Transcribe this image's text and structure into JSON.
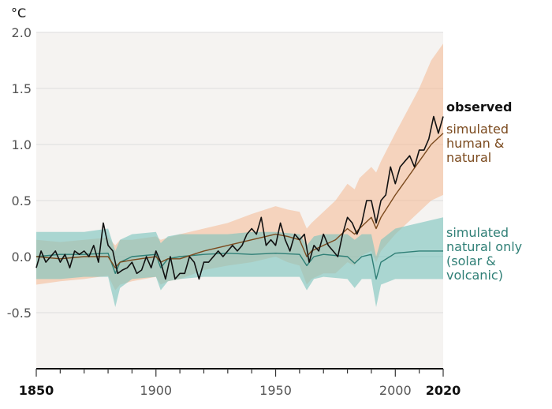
{
  "chart_data": {
    "type": "line",
    "ylabel": "°C",
    "xlim": [
      1850,
      2020
    ],
    "ylim": [
      -1.0,
      2.0
    ],
    "y_ticks": [
      2.0,
      1.5,
      1.0,
      0.5,
      0.0,
      -0.5
    ],
    "y_tick_labels": [
      "2.0",
      "1.5",
      "1.0",
      "0.5",
      "0.0",
      "-0.5"
    ],
    "x_ticks": [
      1850,
      1900,
      1950,
      2000,
      2020
    ],
    "x_tick_labels": [
      "1850",
      "1900",
      "1950",
      "2000",
      "2020"
    ],
    "x_tick_bold": [
      true,
      false,
      false,
      false,
      true
    ],
    "grid": true,
    "colors": {
      "plot_bg": "#f5f3f1",
      "grid": "#dddddd",
      "observed": "#111111",
      "human_natural": "#7b4a1e",
      "human_natural_band": "#f4b892",
      "natural": "#2f7f76",
      "natural_band": "#78c3bd"
    },
    "legend": {
      "observed": [
        "observed"
      ],
      "human_natural": [
        "simulated",
        "human &",
        "natural"
      ],
      "natural": [
        "simulated",
        "natural only",
        "(solar &",
        "volcanic)"
      ]
    },
    "series": [
      {
        "key": "observed",
        "x": [
          1850,
          1852,
          1854,
          1856,
          1858,
          1860,
          1862,
          1864,
          1866,
          1868,
          1870,
          1872,
          1874,
          1876,
          1878,
          1880,
          1882,
          1884,
          1886,
          1888,
          1890,
          1892,
          1894,
          1896,
          1898,
          1900,
          1902,
          1904,
          1906,
          1908,
          1910,
          1912,
          1914,
          1916,
          1918,
          1920,
          1922,
          1924,
          1926,
          1928,
          1930,
          1932,
          1934,
          1936,
          1938,
          1940,
          1942,
          1944,
          1946,
          1948,
          1950,
          1952,
          1954,
          1956,
          1958,
          1960,
          1962,
          1964,
          1966,
          1968,
          1970,
          1972,
          1974,
          1976,
          1978,
          1980,
          1982,
          1984,
          1986,
          1988,
          1990,
          1992,
          1994,
          1996,
          1998,
          2000,
          2002,
          2004,
          2006,
          2008,
          2010,
          2012,
          2014,
          2016,
          2018,
          2020
        ],
        "values": [
          -0.1,
          0.05,
          -0.05,
          0.0,
          0.05,
          -0.05,
          0.02,
          -0.1,
          0.05,
          0.02,
          0.05,
          0.0,
          0.1,
          -0.05,
          0.3,
          0.1,
          0.05,
          -0.15,
          -0.12,
          -0.1,
          -0.05,
          -0.15,
          -0.12,
          0.0,
          -0.1,
          0.05,
          -0.05,
          -0.2,
          0.0,
          -0.2,
          -0.15,
          -0.15,
          0.0,
          -0.05,
          -0.2,
          -0.05,
          -0.05,
          0.0,
          0.05,
          0.0,
          0.05,
          0.1,
          0.05,
          0.1,
          0.2,
          0.25,
          0.2,
          0.35,
          0.1,
          0.15,
          0.1,
          0.3,
          0.15,
          0.05,
          0.2,
          0.15,
          0.2,
          -0.05,
          0.1,
          0.05,
          0.2,
          0.1,
          0.05,
          0.0,
          0.2,
          0.35,
          0.3,
          0.2,
          0.3,
          0.5,
          0.5,
          0.3,
          0.5,
          0.55,
          0.8,
          0.65,
          0.8,
          0.85,
          0.9,
          0.8,
          0.95,
          0.95,
          1.05,
          1.25,
          1.1,
          1.25
        ]
      },
      {
        "key": "human_natural",
        "x": [
          1850,
          1860,
          1870,
          1880,
          1883,
          1885,
          1890,
          1900,
          1902,
          1905,
          1910,
          1920,
          1930,
          1940,
          1950,
          1955,
          1960,
          1963,
          1965,
          1970,
          1975,
          1980,
          1983,
          1985,
          1990,
          1992,
          1994,
          2000,
          2005,
          2010,
          2015,
          2020
        ],
        "values": [
          0.0,
          -0.02,
          0.0,
          0.0,
          -0.1,
          -0.05,
          -0.03,
          0.0,
          -0.05,
          -0.02,
          -0.02,
          0.05,
          0.1,
          0.15,
          0.2,
          0.18,
          0.15,
          0.0,
          0.05,
          0.1,
          0.15,
          0.25,
          0.2,
          0.25,
          0.35,
          0.25,
          0.35,
          0.55,
          0.7,
          0.85,
          1.0,
          1.1
        ],
        "upper": [
          0.15,
          0.13,
          0.15,
          0.17,
          0.1,
          0.15,
          0.15,
          0.18,
          0.15,
          0.17,
          0.2,
          0.25,
          0.3,
          0.38,
          0.45,
          0.42,
          0.4,
          0.25,
          0.3,
          0.4,
          0.5,
          0.65,
          0.6,
          0.7,
          0.8,
          0.75,
          0.85,
          1.1,
          1.3,
          1.5,
          1.75,
          1.9
        ],
        "lower": [
          -0.25,
          -0.22,
          -0.2,
          -0.17,
          -0.3,
          -0.25,
          -0.22,
          -0.18,
          -0.25,
          -0.22,
          -0.2,
          -0.12,
          -0.08,
          -0.05,
          0.0,
          -0.05,
          -0.08,
          -0.25,
          -0.2,
          -0.15,
          -0.15,
          -0.05,
          -0.08,
          0.0,
          0.05,
          -0.05,
          0.05,
          0.2,
          0.3,
          0.4,
          0.5,
          0.55
        ]
      },
      {
        "key": "natural",
        "x": [
          1850,
          1860,
          1870,
          1880,
          1883,
          1885,
          1890,
          1900,
          1902,
          1905,
          1910,
          1920,
          1930,
          1940,
          1950,
          1960,
          1963,
          1966,
          1970,
          1980,
          1983,
          1986,
          1990,
          1992,
          1994,
          2000,
          2010,
          2020
        ],
        "values": [
          0.0,
          0.02,
          0.02,
          0.03,
          -0.15,
          -0.05,
          0.0,
          0.02,
          -0.1,
          -0.02,
          0.0,
          0.02,
          0.03,
          0.02,
          0.03,
          0.02,
          -0.08,
          0.0,
          0.02,
          0.0,
          -0.06,
          0.0,
          0.02,
          -0.2,
          -0.05,
          0.03,
          0.05,
          0.05
        ],
        "upper": [
          0.22,
          0.22,
          0.22,
          0.25,
          0.05,
          0.15,
          0.2,
          0.22,
          0.12,
          0.18,
          0.2,
          0.2,
          0.2,
          0.22,
          0.22,
          0.2,
          0.1,
          0.18,
          0.2,
          0.2,
          0.15,
          0.2,
          0.2,
          0.0,
          0.15,
          0.25,
          0.3,
          0.35
        ],
        "lower": [
          -0.2,
          -0.2,
          -0.18,
          -0.18,
          -0.45,
          -0.28,
          -0.2,
          -0.18,
          -0.3,
          -0.22,
          -0.2,
          -0.18,
          -0.18,
          -0.18,
          -0.18,
          -0.18,
          -0.3,
          -0.2,
          -0.18,
          -0.2,
          -0.28,
          -0.2,
          -0.2,
          -0.45,
          -0.25,
          -0.2,
          -0.2,
          -0.2
        ]
      }
    ]
  }
}
